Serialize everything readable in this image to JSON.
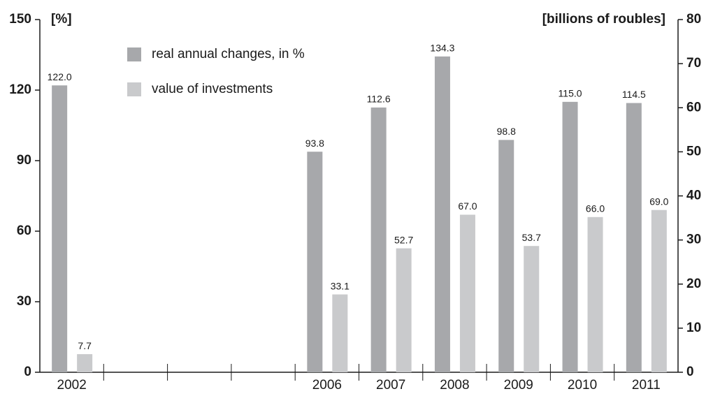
{
  "chart_data": {
    "type": "bar",
    "y_label": "[%]",
    "y2_label": "[billions of roubles]",
    "categories": [
      "2002",
      null,
      null,
      null,
      "2006",
      "2007",
      "2008",
      "2009",
      "2010",
      "2011"
    ],
    "series": [
      {
        "name": "real annual changes, in %",
        "color": "#a7a8ab",
        "values": [
          122.0,
          null,
          null,
          null,
          93.8,
          112.6,
          134.3,
          98.8,
          115.0,
          114.5
        ],
        "value_labels": [
          "122.0",
          null,
          null,
          null,
          "93.8",
          "112.6",
          "134.3",
          "98.8",
          "115.0",
          "114.5"
        ]
      },
      {
        "name": "value of investments",
        "color": "#c9cacc",
        "values": [
          7.7,
          null,
          null,
          null,
          33.1,
          52.7,
          67.0,
          53.7,
          66.0,
          69.0
        ],
        "value_labels": [
          "7.7",
          null,
          null,
          null,
          "33.1",
          "52.7",
          "67.0",
          "53.7",
          "66.0",
          "69.0"
        ]
      }
    ],
    "ylim": [
      0,
      150
    ],
    "yticks": [
      0,
      30,
      60,
      90,
      120,
      150
    ],
    "y2lim": [
      0,
      80
    ],
    "y2ticks": [
      0,
      10,
      20,
      30,
      40,
      50,
      60,
      70,
      80
    ],
    "grid": false
  }
}
